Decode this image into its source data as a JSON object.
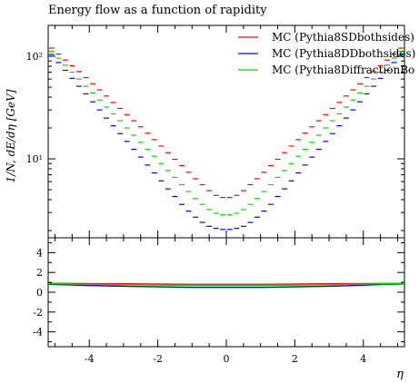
{
  "chart_data": {
    "type": "scatter",
    "title": "Energy flow as a function of rapidity",
    "xlabel": "η",
    "ylabel": "1/N, dE/dη [GeV]",
    "xlim": [
      -5.2,
      5.2
    ],
    "ylim_log": [
      1.7,
      200
    ],
    "ratio_ylim": [
      -5.5,
      5.5
    ],
    "legend_placement": "top-right",
    "x_ticks": [
      -4,
      -2,
      0,
      2,
      4
    ],
    "y_ticks_main": [
      "10¹",
      "10²"
    ],
    "y_ticks_ratio": [
      4,
      2,
      0,
      -2,
      -4
    ],
    "x_edges": [
      -5.2,
      -5.0,
      -4.8,
      -4.6,
      -4.4,
      -4.2,
      -4.0,
      -3.8,
      -3.6,
      -3.4,
      -3.2,
      -3.0,
      -2.8,
      -2.6,
      -2.4,
      -2.2,
      -2.0,
      -1.8,
      -1.6,
      -1.4,
      -1.2,
      -1.0,
      -0.8,
      -0.6,
      -0.4,
      -0.2,
      0.0,
      0.2,
      0.4,
      0.6,
      0.8,
      1.0,
      1.2,
      1.4,
      1.6,
      1.8,
      2.0,
      2.2,
      2.4,
      2.6,
      2.8,
      3.0,
      3.2,
      3.4,
      3.6,
      3.8,
      4.0,
      4.2,
      4.4,
      4.6,
      4.8,
      5.0,
      5.2
    ],
    "series": [
      {
        "name": "MC (Pythia8SDbothsides)",
        "color": "#ff0000",
        "values": [
          120,
          105,
          92,
          81,
          71,
          62,
          54,
          47,
          41,
          35.5,
          31,
          27,
          23.5,
          20.5,
          17.8,
          15.4,
          13.3,
          11.5,
          9.9,
          8.6,
          7.4,
          6.4,
          5.6,
          4.9,
          4.4,
          4.2,
          4.2,
          4.4,
          4.9,
          5.6,
          6.4,
          7.4,
          8.6,
          9.9,
          11.5,
          13.3,
          15.4,
          17.8,
          20.5,
          23.5,
          27,
          31,
          35.5,
          41,
          47,
          54,
          62,
          71,
          81,
          92,
          105,
          120
        ]
      },
      {
        "name": "MC (Pythia8DDbothsides)",
        "color": "#0000ff",
        "values": [
          104,
          87,
          73,
          61,
          51,
          43,
          36,
          30,
          25,
          21,
          17.6,
          14.8,
          12.4,
          10.4,
          8.7,
          7.3,
          6.1,
          5.1,
          4.3,
          3.6,
          3.1,
          2.7,
          2.4,
          2.2,
          2.1,
          2.05,
          2.05,
          2.1,
          2.2,
          2.4,
          2.7,
          3.1,
          3.6,
          4.3,
          5.1,
          6.1,
          7.3,
          8.7,
          10.4,
          12.4,
          14.8,
          17.6,
          21,
          25,
          30,
          36,
          43,
          51,
          61,
          73,
          87,
          104
        ]
      },
      {
        "name": "MC (Pythia8DiffractionBo",
        "color": "#00dd00",
        "values": [
          112,
          96,
          82,
          70,
          60,
          51,
          44,
          37.5,
          32,
          27.5,
          23.5,
          20,
          17,
          14.5,
          12.4,
          10.6,
          9,
          7.7,
          6.6,
          5.6,
          4.8,
          4.1,
          3.6,
          3.2,
          2.95,
          2.85,
          2.85,
          2.95,
          3.2,
          3.6,
          4.1,
          4.8,
          5.6,
          6.6,
          7.7,
          9,
          10.6,
          12.4,
          14.5,
          17,
          20,
          23.5,
          27.5,
          32,
          37.5,
          44,
          51,
          60,
          70,
          82,
          96,
          112
        ]
      }
    ],
    "ratio_series": [
      {
        "name": "MC (Pythia8SDbothsides)",
        "color": "#ff0000",
        "y": [
          0.9,
          0.85,
          0.8,
          0.8,
          0.85,
          0.9
        ]
      },
      {
        "name": "MC (Pythia8DDbothsides)",
        "color": "#0000ff",
        "y": [
          0.8,
          0.6,
          0.5,
          0.5,
          0.6,
          0.85
        ]
      },
      {
        "name": "MC (Pythia8DiffractionBo",
        "color": "#00dd00",
        "y": [
          0.85,
          0.75,
          0.7,
          0.7,
          0.75,
          0.9
        ]
      }
    ],
    "ratio_x": [
      -5.2,
      -3,
      -1,
      1,
      3,
      5.2
    ]
  }
}
